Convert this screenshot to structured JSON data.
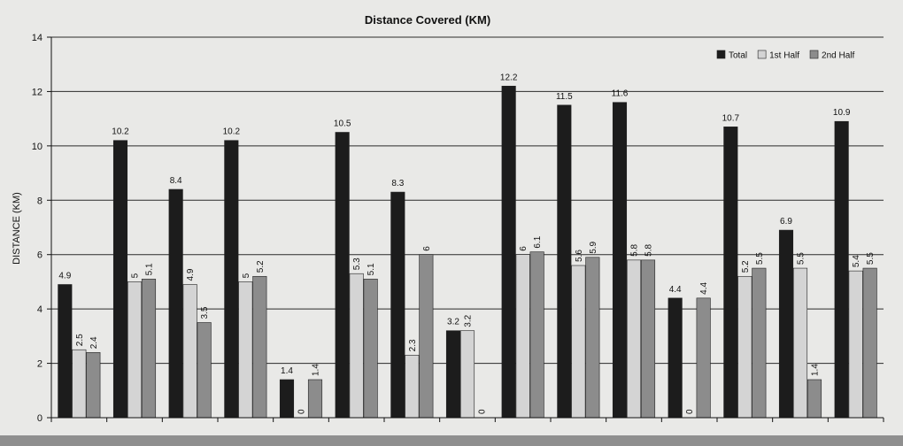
{
  "chart_data": {
    "type": "bar",
    "title": "Distance Covered (KM)",
    "xlabel": "",
    "ylabel": "DISTANCE (KM)",
    "ylim": [
      0,
      14
    ],
    "yticks": [
      0,
      2,
      4,
      6,
      8,
      10,
      12,
      14
    ],
    "grid": true,
    "legend_position": "top-right",
    "categories": [
      "",
      "",
      "",
      "",
      "",
      "",
      "",
      "",
      "",
      "",
      "",
      "",
      "",
      "",
      ""
    ],
    "series": [
      {
        "name": "Total",
        "color": "#1c1c1c",
        "values": [
          4.9,
          10.2,
          8.4,
          10.2,
          1.4,
          10.5,
          8.3,
          3.2,
          12.2,
          11.5,
          11.6,
          4.4,
          10.7,
          6.9,
          10.9
        ],
        "labels": [
          "4.9",
          "10.2",
          "8.4",
          "10.2",
          "1.4",
          "10.5",
          "8.3",
          "3.2",
          "12.2",
          "11.5",
          "11.6",
          "4.4",
          "10.7",
          "6.9",
          "10.9"
        ]
      },
      {
        "name": "1st Half",
        "color": "#d4d4d4",
        "values": [
          2.5,
          5,
          4.9,
          5,
          0,
          5.3,
          2.3,
          3.2,
          6,
          5.6,
          5.8,
          0,
          5.2,
          5.5,
          5.4
        ],
        "labels": [
          "2.5",
          "5",
          "4.9",
          "5",
          "0",
          "5.3",
          "2.3",
          "3.2",
          "6",
          "5.6",
          "5.8",
          "0",
          "5.2",
          "5.5",
          "5.4"
        ]
      },
      {
        "name": "2nd Half",
        "color": "#8c8c8c",
        "values": [
          2.4,
          5.1,
          3.5,
          5.2,
          1.4,
          5.1,
          6,
          0,
          6.1,
          5.9,
          5.8,
          4.4,
          5.5,
          1.4,
          5.5
        ],
        "labels": [
          "2.4",
          "5.1",
          "3.5",
          "5.2",
          "1.4",
          "5.1",
          "6",
          "0",
          "6.1",
          "5.9",
          "5.8",
          "4.4",
          "5.5",
          "1.4",
          "5.5"
        ]
      }
    ]
  }
}
